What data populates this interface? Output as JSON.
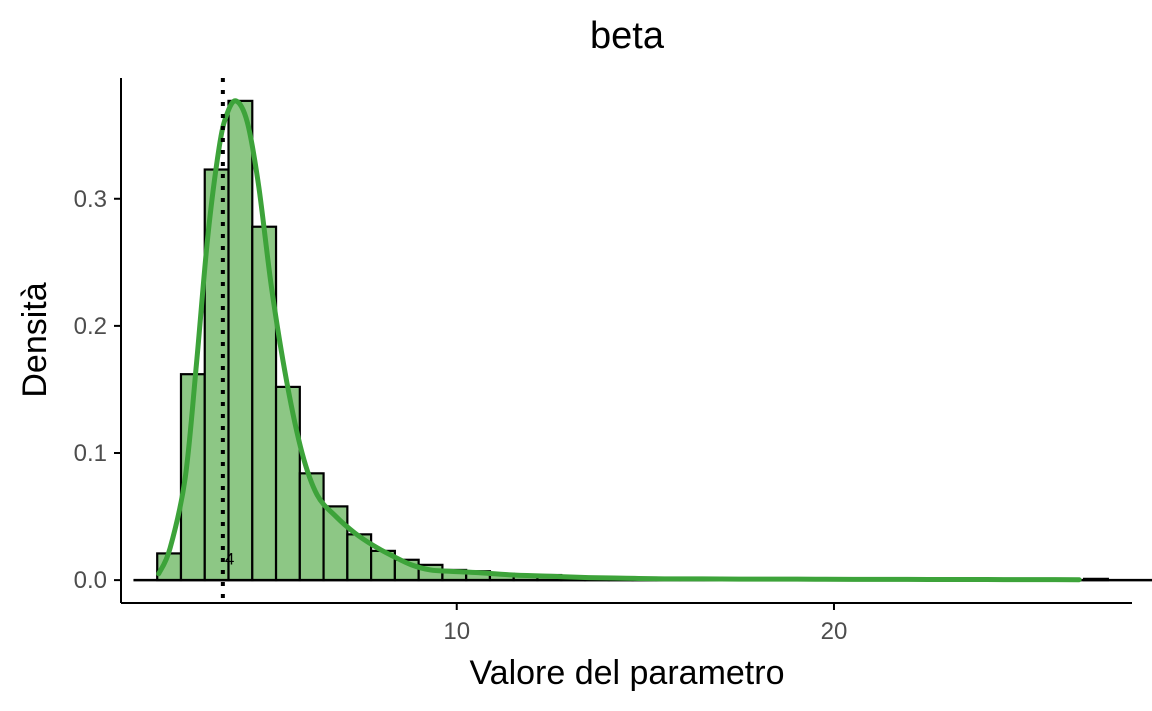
{
  "chart_data": {
    "type": "bar",
    "title": "beta",
    "xlabel": "Valore del parametro",
    "ylabel": "Densità",
    "xlim": [
      1.1,
      27.9
    ],
    "ylim": [
      -0.018,
      0.395
    ],
    "x_ticks": [
      10,
      20
    ],
    "x_tick_labels": [
      "10",
      "20"
    ],
    "y_ticks": [
      0.0,
      0.1,
      0.2,
      0.3
    ],
    "y_tick_labels": [
      "0.0",
      "0.1",
      "0.2",
      "0.3"
    ],
    "grid": false,
    "legend": "none",
    "histogram": {
      "bin_width": 0.63,
      "bin_start": 1.43,
      "values": [
        0.0,
        0.021,
        0.162,
        0.323,
        0.377,
        0.278,
        0.152,
        0.084,
        0.058,
        0.036,
        0.023,
        0.016,
        0.012,
        0.008,
        0.007,
        0.005,
        0.004,
        0.004,
        0.003,
        0.002,
        0.002,
        0.002,
        0.001,
        0.001,
        0.001,
        0.001,
        0.001,
        0.001,
        0.0,
        0.001,
        0.0,
        0.001,
        0.0,
        0.0,
        0.0,
        0.0,
        0.0,
        0.0,
        0.0,
        0.0,
        0.001,
        0.0,
        0.0
      ]
    },
    "density": {
      "name": "",
      "x": [
        2.1,
        2.4,
        2.8,
        3.1,
        3.4,
        3.7,
        3.9,
        4.15,
        4.45,
        4.75,
        5.1,
        5.5,
        5.9,
        6.3,
        6.8,
        7.3,
        7.8,
        8.3,
        8.8,
        9.3,
        9.8,
        10.5,
        11.5,
        12.5,
        13.5,
        14.5,
        15.5,
        16.5,
        17.5,
        18.5,
        19.5,
        20.5,
        21.5,
        22.5,
        23.5,
        24.5,
        25.5,
        26.5
      ],
      "y": [
        0.005,
        0.025,
        0.08,
        0.17,
        0.27,
        0.34,
        0.366,
        0.377,
        0.36,
        0.31,
        0.228,
        0.155,
        0.1,
        0.067,
        0.05,
        0.037,
        0.027,
        0.019,
        0.012,
        0.008,
        0.007,
        0.006,
        0.004,
        0.003,
        0.002,
        0.0015,
        0.001,
        0.001,
        0.0008,
        0.0008,
        0.0007,
        0.0006,
        0.0006,
        0.0005,
        0.0005,
        0.0004,
        0.0004,
        0.0003
      ]
    },
    "vline": {
      "x": 3.8,
      "label": "4",
      "label_y": 0.017
    },
    "colors": {
      "bar_fill": "#8dc785",
      "bar_stroke": "#000000",
      "density_line": "#3da33a",
      "vline": "#000000",
      "axis": "#000000",
      "tick_text": "#4d4d4d"
    }
  }
}
